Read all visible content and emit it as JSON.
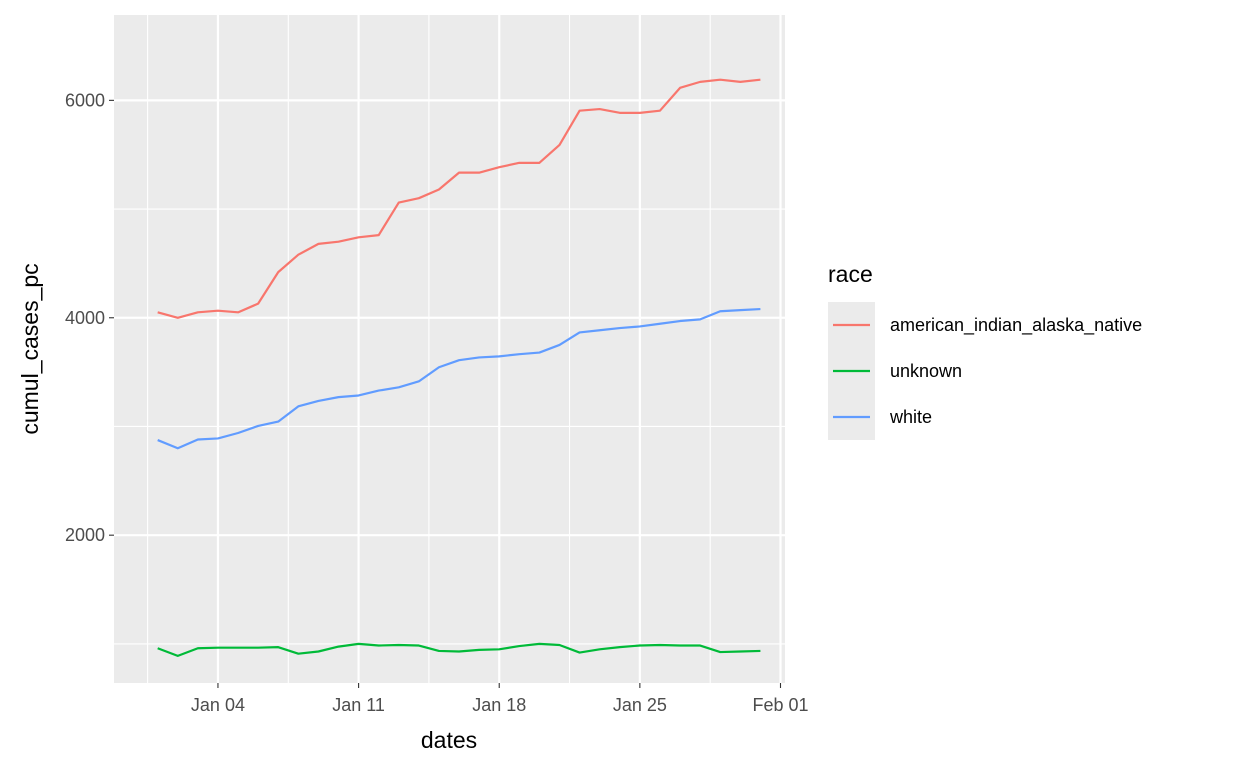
{
  "chart_data": {
    "type": "line",
    "xlabel": "dates",
    "ylabel": "cumul_cases_pc",
    "x_start": "2021-01-01",
    "x_end": "2021-01-31",
    "x": [
      "2021-01-01",
      "2021-01-02",
      "2021-01-03",
      "2021-01-04",
      "2021-01-05",
      "2021-01-06",
      "2021-01-07",
      "2021-01-08",
      "2021-01-09",
      "2021-01-10",
      "2021-01-11",
      "2021-01-12",
      "2021-01-13",
      "2021-01-14",
      "2021-01-15",
      "2021-01-16",
      "2021-01-17",
      "2021-01-18",
      "2021-01-19",
      "2021-01-20",
      "2021-01-21",
      "2021-01-22",
      "2021-01-23",
      "2021-01-24",
      "2021-01-25",
      "2021-01-26",
      "2021-01-27",
      "2021-01-28",
      "2021-01-29",
      "2021-01-30",
      "2021-01-31"
    ],
    "xlim": [
      "2020-12-30",
      "2021-02-01"
    ],
    "ylim": [
      700,
      6500
    ],
    "y_ticks": [
      2000,
      4000,
      6000
    ],
    "x_ticks": [
      {
        "date": "2021-01-04",
        "label": "Jan 04"
      },
      {
        "date": "2021-01-11",
        "label": "Jan 11"
      },
      {
        "date": "2021-01-18",
        "label": "Jan 18"
      },
      {
        "date": "2021-01-25",
        "label": "Jan 25"
      },
      {
        "date": "2021-02-01",
        "label": "Feb 01"
      }
    ],
    "grid": true,
    "legend": {
      "title": "race",
      "placement": "right"
    },
    "series": [
      {
        "name": "american_indian_alaska_native",
        "color": "#F8766D",
        "values": [
          4050,
          4000,
          4050,
          4065,
          4050,
          4130,
          4420,
          4580,
          4680,
          4700,
          4740,
          4760,
          5060,
          5100,
          5180,
          5335,
          5335,
          5385,
          5425,
          5425,
          5590,
          5905,
          5920,
          5885,
          5885,
          5905,
          6115,
          6170,
          6190,
          6170,
          6190
        ]
      },
      {
        "name": "unknown",
        "color": "#00BA38",
        "values": [
          960,
          890,
          960,
          965,
          965,
          965,
          970,
          910,
          930,
          975,
          1000,
          985,
          990,
          985,
          935,
          930,
          945,
          950,
          980,
          1000,
          990,
          920,
          950,
          970,
          985,
          990,
          985,
          985,
          925,
          930,
          935
        ]
      },
      {
        "name": "white",
        "color": "#619CFF",
        "values": [
          2875,
          2800,
          2880,
          2890,
          2940,
          3005,
          3045,
          3185,
          3235,
          3270,
          3285,
          3330,
          3360,
          3415,
          3545,
          3610,
          3635,
          3645,
          3665,
          3680,
          3750,
          3865,
          3885,
          3905,
          3920,
          3945,
          3970,
          3985,
          4060,
          4070,
          4080
        ]
      }
    ]
  }
}
